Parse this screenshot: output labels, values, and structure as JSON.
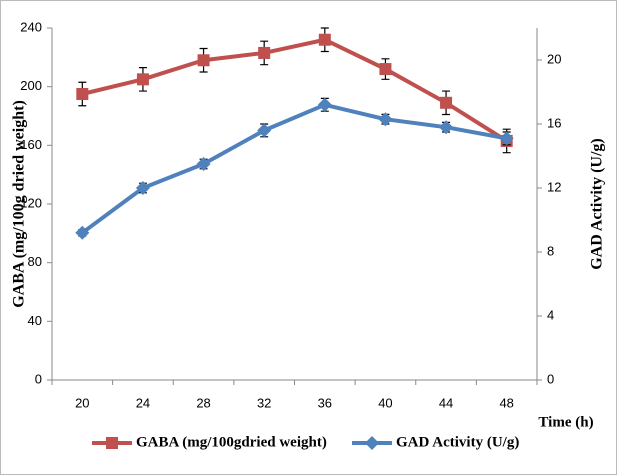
{
  "chart_data": {
    "type": "line",
    "categories": [
      "20",
      "24",
      "28",
      "32",
      "36",
      "40",
      "44",
      "48"
    ],
    "x_label": "Time (h)",
    "y_label": "GABA (mg/100g dried  weight)",
    "y2_label": "GAD  Activity (U/g)",
    "ylim": [
      0,
      240
    ],
    "yticks": [
      0,
      40,
      80,
      120,
      160,
      200,
      240
    ],
    "y2lim": [
      0,
      22
    ],
    "y2ticks": [
      0,
      4,
      8,
      12,
      16,
      20
    ],
    "legend": "bottom",
    "series": [
      {
        "name": "GABA (mg/100gdried weight)",
        "color": "#c0504d",
        "marker": "square",
        "values": [
          195,
          205,
          218,
          223,
          232,
          212,
          189,
          163
        ],
        "errors": [
          8,
          8,
          8,
          8,
          8,
          7,
          8,
          8
        ]
      },
      {
        "name": "GAD Activity (U/g)",
        "color": "#4f81bd",
        "marker": "diamond",
        "axis": "y2",
        "values": [
          9.2,
          12.0,
          13.5,
          15.6,
          17.2,
          16.3,
          15.8,
          15.1
        ],
        "errors": [
          0.2,
          0.3,
          0.3,
          0.4,
          0.4,
          0.3,
          0.3,
          0.4
        ]
      }
    ]
  }
}
